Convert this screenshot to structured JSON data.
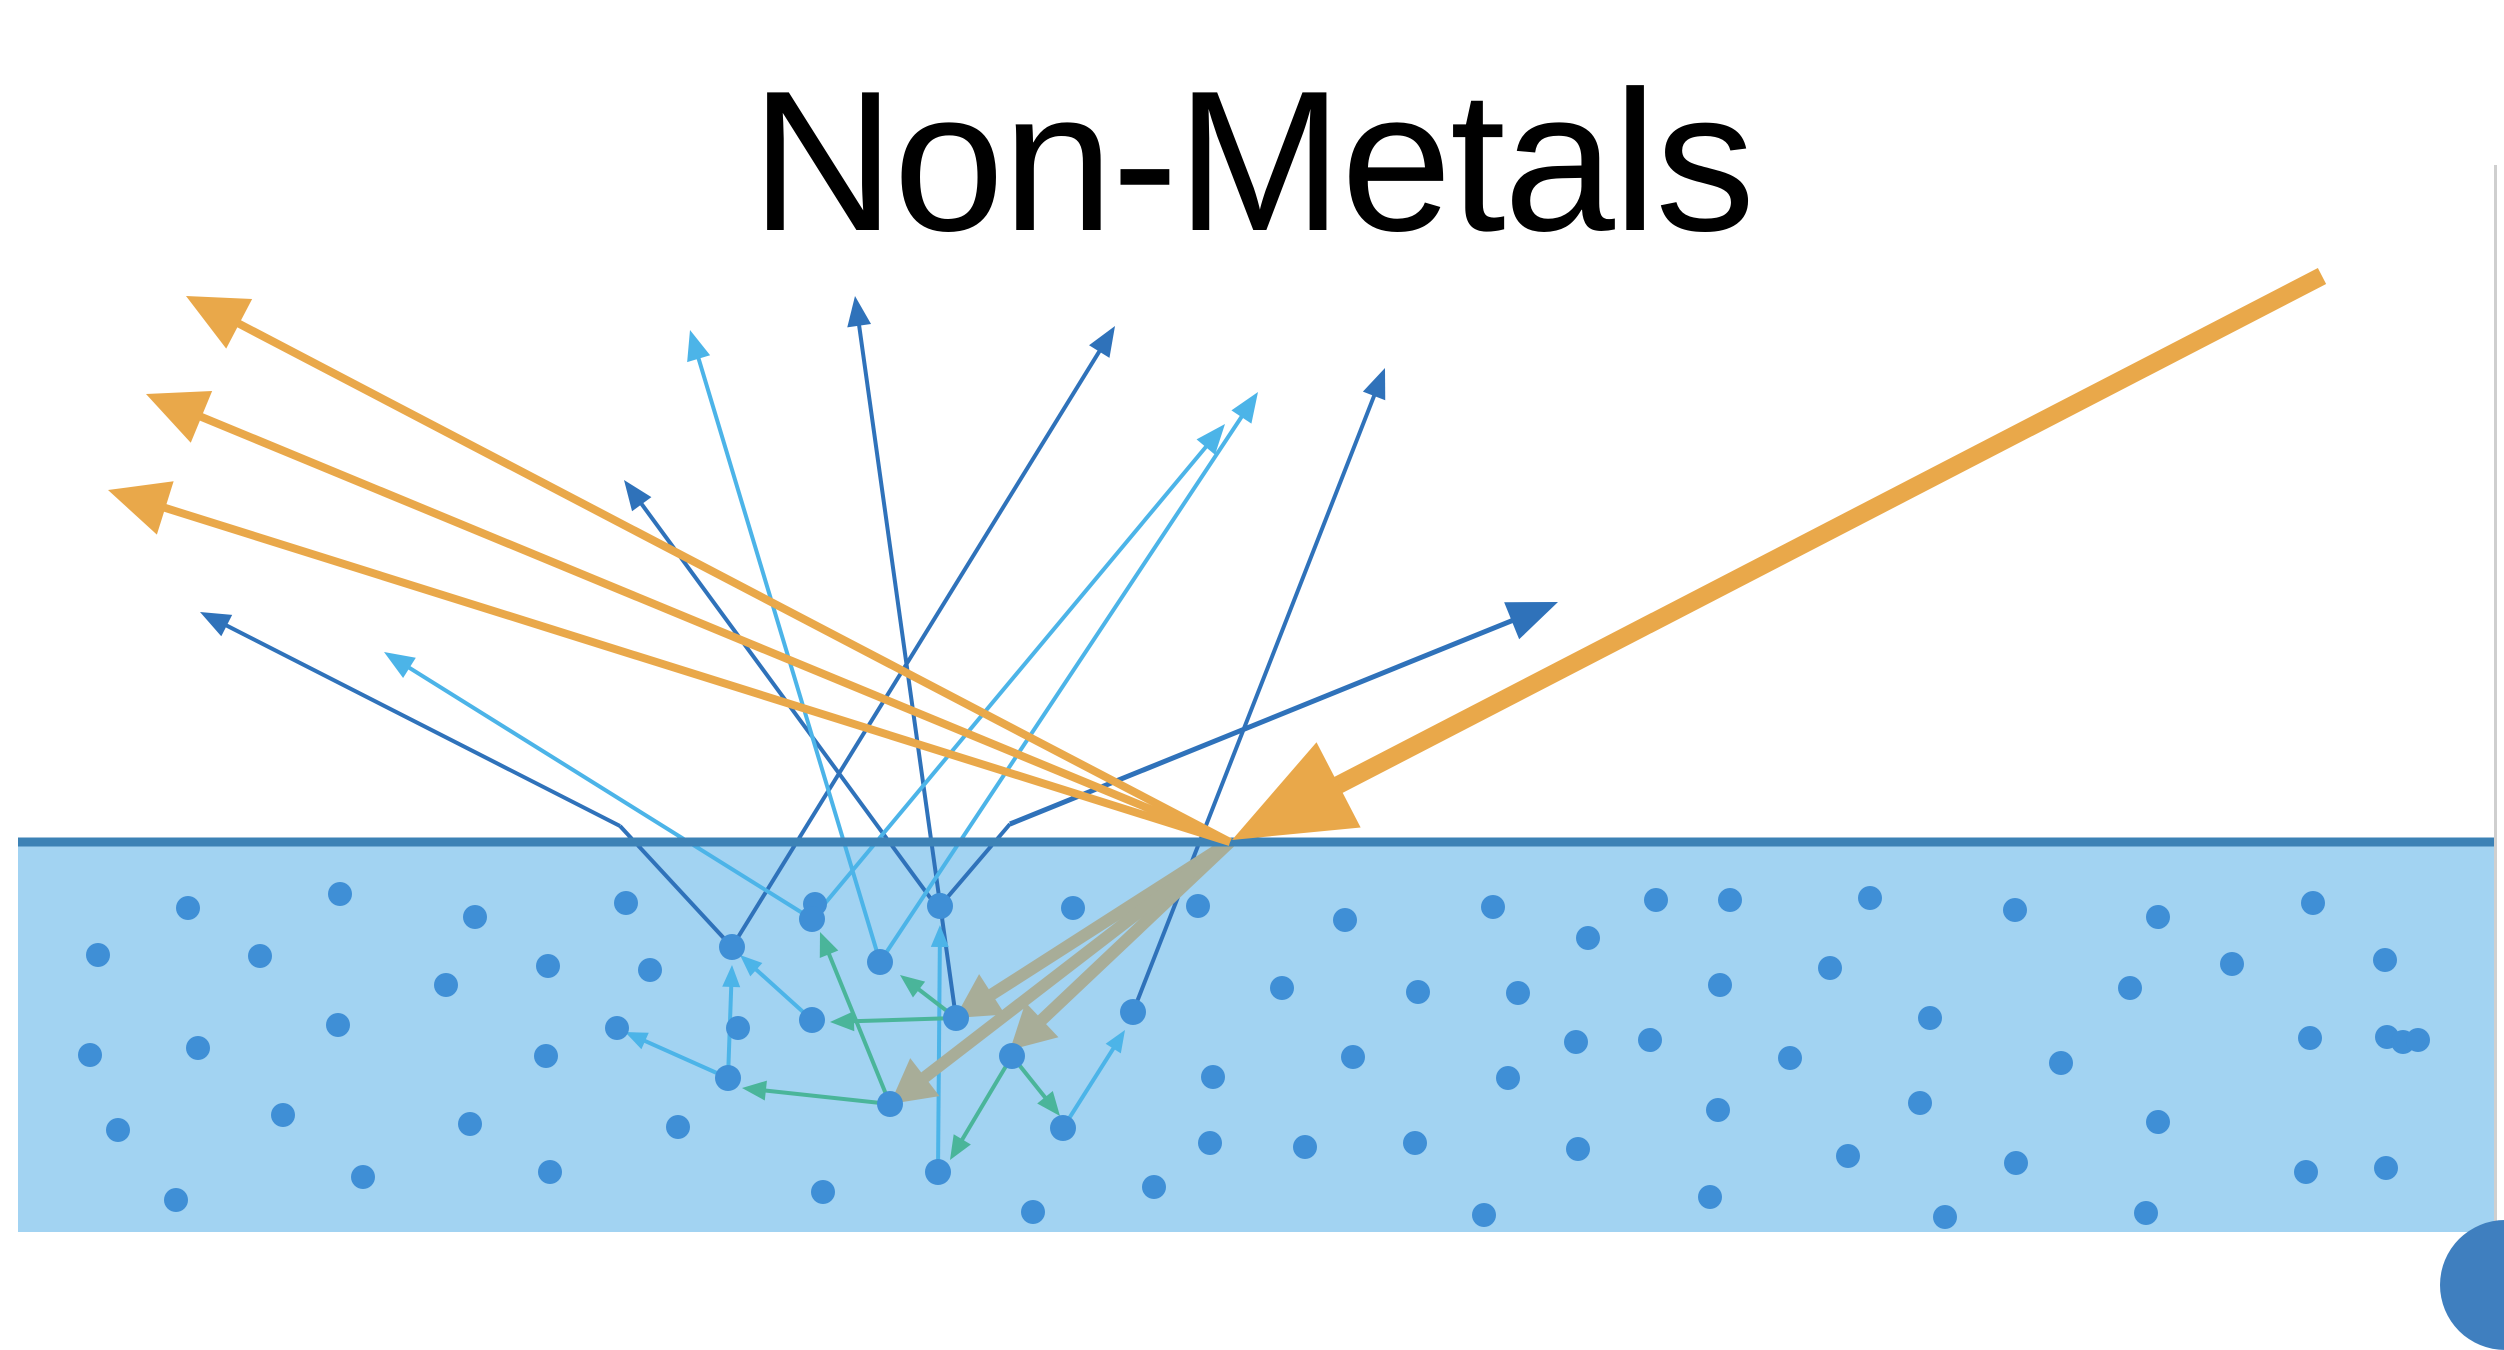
{
  "title": "Non-Metals",
  "colors": {
    "background": "#ffffff",
    "medium_fill": "#a2d3f2",
    "surface_line": "#3c82b6",
    "particle": "#3f8fd6",
    "incident_light": "#e9a84a",
    "specular_reflection": "#e9a84a",
    "diffuse_dark": "#2f72ba",
    "diffuse_light": "#4cb4e8",
    "internal_scatter": "#4ab59a",
    "refracted_light": "#a8ad98"
  },
  "icons": {
    "incident": "arrow-icon",
    "reflected": "arrow-icon",
    "scattered": "arrow-icon"
  }
}
